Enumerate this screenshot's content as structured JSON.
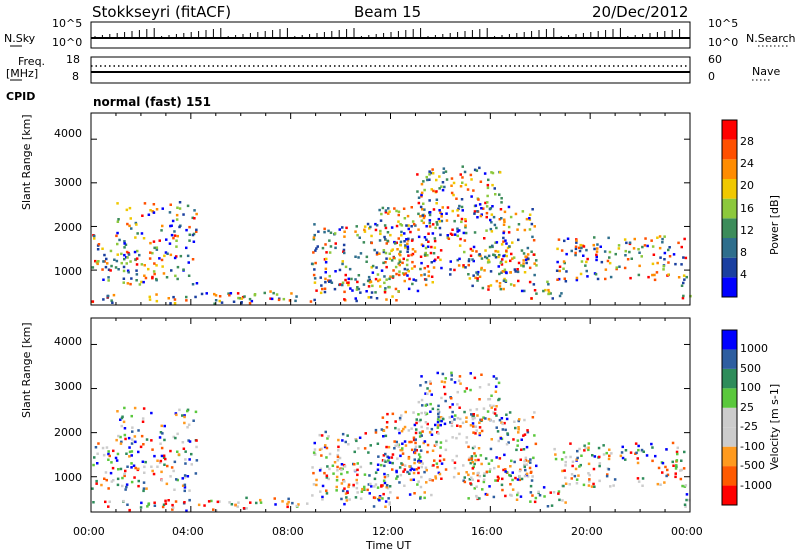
{
  "header": {
    "station": "Stokkseyri (fitACF)",
    "beam": "Beam 15",
    "date": "20/Dec/2012"
  },
  "side_labels": {
    "nsky": "N.Sky",
    "freq_top": "Freq.",
    "freq_unit": "[MHz]",
    "cpid": "CPID",
    "nsearch": "N.Search",
    "nave": "Nave"
  },
  "cpid_text": "normal (fast) 151",
  "colors": {
    "power_scale": [
      "#0000ff",
      "#1a3fa0",
      "#2e6e8c",
      "#3c8c5a",
      "#8cc83c",
      "#f0c800",
      "#ff8c00",
      "#ff5000",
      "#ff0000"
    ],
    "velocity_scale": [
      "#ff0000",
      "#ff5a00",
      "#ff9a1e",
      "#cccccc",
      "#cccccc",
      "#5ac83c",
      "#2e8c5a",
      "#2e5ea0",
      "#0000ff"
    ]
  },
  "chart_data": [
    {
      "type": "line",
      "panel": "N.Sky / N.Search",
      "left_ticks": [
        "10^5",
        "10^0"
      ],
      "right_ticks": [
        "10^5",
        "10^0"
      ]
    },
    {
      "type": "line",
      "panel": "Freq / Nave",
      "left_ticks": [
        "18",
        "8"
      ],
      "right_ticks": [
        "60",
        "0"
      ]
    },
    {
      "type": "heatmap",
      "panel": "power",
      "ylabel": "Slant Range [km]",
      "yticks": [
        "4000",
        "3000",
        "2000",
        "1000"
      ],
      "ylim": [
        200,
        4600
      ],
      "colorbar_label": "Power [dB]",
      "colorbar_ticks": [
        "28",
        "24",
        "20",
        "16",
        "12",
        "8",
        "4"
      ]
    },
    {
      "type": "heatmap",
      "panel": "velocity",
      "ylabel": "Slant Range [km]",
      "yticks": [
        "4000",
        "3000",
        "2000",
        "1000"
      ],
      "ylim": [
        200,
        4600
      ],
      "colorbar_label": "Velocity [m s-1]",
      "colorbar_ticks": [
        "1000",
        "500",
        "100",
        "25",
        "-25",
        "-100",
        "-500",
        "-1000"
      ]
    },
    {
      "type": "time_axis",
      "xlabel": "Time UT",
      "xticks": [
        "00:00",
        "04:00",
        "08:00",
        "12:00",
        "16:00",
        "20:00",
        "00:00"
      ],
      "xlim_hours": [
        0,
        24
      ]
    }
  ]
}
